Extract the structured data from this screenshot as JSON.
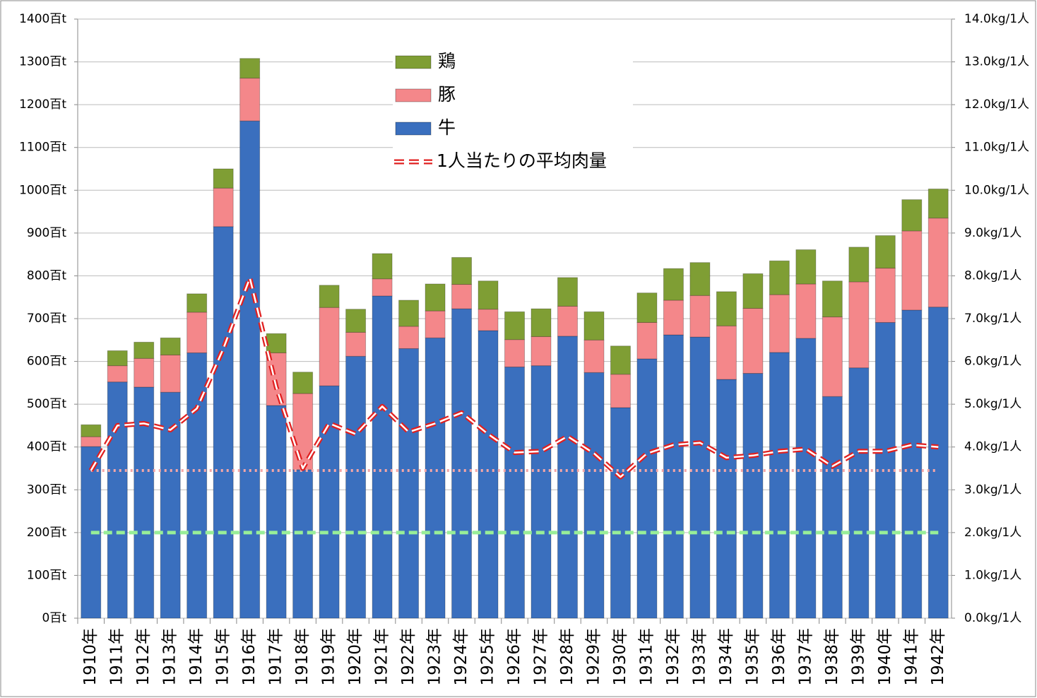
{
  "chart_data": {
    "type": "bar",
    "categories": [
      "1910年",
      "1911年",
      "1912年",
      "1913年",
      "1914年",
      "1915年",
      "1916年",
      "1917年",
      "1918年",
      "1919年",
      "1920年",
      "1921年",
      "1922年",
      "1923年",
      "1924年",
      "1925年",
      "1926年",
      "1927年",
      "1928年",
      "1929年",
      "1930年",
      "1931年",
      "1932年",
      "1933年",
      "1934年",
      "1935年",
      "1936年",
      "1937年",
      "1938年",
      "1939年",
      "1940年",
      "1941年",
      "1942年"
    ],
    "stacked": true,
    "series": [
      {
        "name": "牛",
        "color": "#3a6fbe",
        "values": [
          401,
          552,
          540,
          528,
          620,
          915,
          1162,
          497,
          347,
          543,
          612,
          753,
          630,
          655,
          723,
          672,
          587,
          590,
          659,
          574,
          492,
          606,
          662,
          657,
          558,
          572,
          621,
          654,
          518,
          585,
          691,
          720,
          727
        ]
      },
      {
        "name": "豚",
        "color": "#f4878a",
        "values": [
          23,
          38,
          67,
          87,
          95,
          90,
          100,
          123,
          178,
          183,
          56,
          40,
          52,
          63,
          57,
          50,
          64,
          68,
          70,
          76,
          78,
          85,
          81,
          97,
          125,
          152,
          135,
          127,
          186,
          201,
          127,
          185,
          208
        ]
      },
      {
        "name": "鶏",
        "color": "#7f9e34",
        "values": [
          28,
          35,
          38,
          40,
          43,
          45,
          46,
          45,
          50,
          52,
          54,
          59,
          61,
          63,
          63,
          66,
          65,
          65,
          67,
          66,
          66,
          69,
          74,
          77,
          80,
          81,
          79,
          80,
          84,
          81,
          76,
          73,
          68
        ]
      },
      {
        "name": "1人当たりの平均肉量",
        "type": "line",
        "axis": "y2",
        "color": "#e02020",
        "values": [
          3.45,
          4.5,
          4.55,
          4.4,
          4.9,
          6.3,
          7.95,
          5.4,
          3.5,
          4.55,
          4.3,
          4.95,
          4.35,
          4.55,
          4.8,
          4.3,
          3.87,
          3.9,
          4.25,
          3.85,
          3.3,
          3.85,
          4.05,
          4.1,
          3.75,
          3.8,
          3.9,
          3.95,
          3.55,
          3.9,
          3.9,
          4.05,
          4.0
        ]
      }
    ],
    "reference_lines": [
      {
        "value": 3.45,
        "axis": "y2",
        "color": "#f4a6a6",
        "style": "dotted"
      },
      {
        "value": 2.0,
        "axis": "y2",
        "color": "#98ee98",
        "style": "dashed"
      }
    ],
    "ylim": [
      0,
      1400
    ],
    "yticks": [
      {
        "value": 0,
        "label": "0百t"
      },
      {
        "value": 100,
        "label": "100百t"
      },
      {
        "value": 200,
        "label": "200百t"
      },
      {
        "value": 300,
        "label": "300百t"
      },
      {
        "value": 400,
        "label": "400百t"
      },
      {
        "value": 500,
        "label": "500百t"
      },
      {
        "value": 600,
        "label": "600百t"
      },
      {
        "value": 700,
        "label": "700百t"
      },
      {
        "value": 800,
        "label": "800百t"
      },
      {
        "value": 900,
        "label": "900百t"
      },
      {
        "value": 1000,
        "label": "1000百t"
      },
      {
        "value": 1100,
        "label": "1100百t"
      },
      {
        "value": 1200,
        "label": "1200百t"
      },
      {
        "value": 1300,
        "label": "1300百t"
      },
      {
        "value": 1400,
        "label": "1400百t"
      }
    ],
    "y2lim": [
      0,
      14
    ],
    "y2ticks": [
      {
        "value": 0,
        "label": "0.0kg/1人"
      },
      {
        "value": 1,
        "label": "1.0kg/1人"
      },
      {
        "value": 2,
        "label": "2.0kg/1人"
      },
      {
        "value": 3,
        "label": "3.0kg/1人"
      },
      {
        "value": 4,
        "label": "4.0kg/1人"
      },
      {
        "value": 5,
        "label": "5.0kg/1人"
      },
      {
        "value": 6,
        "label": "6.0kg/1人"
      },
      {
        "value": 7,
        "label": "7.0kg/1人"
      },
      {
        "value": 8,
        "label": "8.0kg/1人"
      },
      {
        "value": 9,
        "label": "9.0kg/1人"
      },
      {
        "value": 10,
        "label": "10.0kg/1人"
      },
      {
        "value": 11,
        "label": "11.0kg/1人"
      },
      {
        "value": 12,
        "label": "12.0kg/1人"
      },
      {
        "value": 13,
        "label": "13.0kg/1人"
      },
      {
        "value": 14,
        "label": "14.0kg/1人"
      }
    ],
    "grid": true
  }
}
